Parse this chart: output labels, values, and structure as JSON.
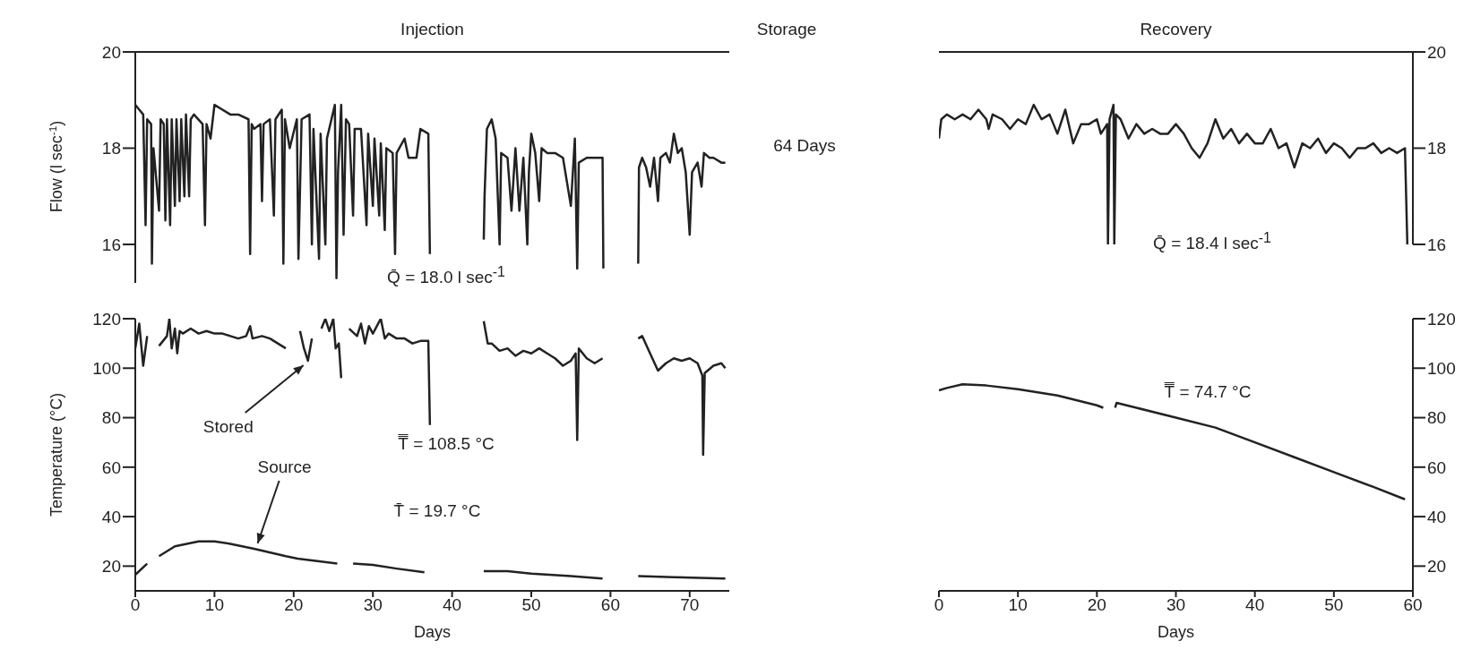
{
  "chart_data": [
    {
      "type": "line",
      "title": "Injection",
      "ylabel": "Flow (l sec$^{-1}$)",
      "annotations": [
        "Q̄ = 18.0 l sec$^{-1}$"
      ],
      "xlim": [
        0,
        75
      ],
      "ylim": [
        15.2,
        20
      ],
      "yticks": [
        16,
        18,
        20
      ],
      "tick_labels": "y",
      "series": [
        {
          "color": "#222222",
          "x": [
            0,
            0.5,
            1,
            1.3,
            1.5,
            2,
            2.1,
            2.3,
            3,
            3.2,
            3.6,
            3.8,
            4,
            4.4,
            4.6,
            5,
            5.2,
            5.6,
            5.8,
            6.2,
            6.4,
            6.8,
            7,
            7.4,
            8.5,
            8.8,
            9,
            9.5,
            10,
            11,
            12,
            13,
            14.3,
            14.5,
            14.7,
            15,
            15.8,
            16,
            16.2,
            17,
            17.5,
            17.7,
            18.5,
            18.7,
            18.9,
            19.5,
            20.4,
            20.6,
            21,
            22,
            22.3,
            22.5,
            23.2,
            23.4,
            24,
            24.2,
            25.2,
            25.4,
            25.6,
            26,
            26.3,
            26.6,
            27,
            27.5,
            27.7,
            28.5,
            29.2,
            29.4,
            30,
            30.2,
            30.8,
            31,
            31.5,
            31.7,
            32.5,
            32.8,
            33,
            34,
            34.5,
            35.5,
            36,
            37,
            37.2,
            40,
            44,
            44.1,
            44.4,
            45,
            45.5,
            46,
            46.2,
            47,
            47.5,
            48,
            48.5,
            49,
            49.5,
            49.7,
            50,
            50.5,
            51,
            51.3,
            52,
            53,
            54,
            54.5,
            55,
            55.5,
            55.8,
            56,
            57,
            58,
            59,
            59.1,
            61,
            63.5,
            63.6,
            64,
            64.5,
            65,
            65.5,
            66,
            66.3,
            67,
            67.5,
            68,
            68.5,
            69,
            69.5,
            70,
            70.3,
            71,
            71.5,
            71.8,
            72.5,
            73,
            74,
            74.5
          ],
          "values": [
            18.9,
            18.8,
            18.7,
            16.4,
            18.6,
            18.5,
            15.6,
            18.0,
            16.7,
            18.6,
            18.5,
            16.5,
            18.6,
            16.4,
            18.6,
            16.8,
            18.6,
            16.9,
            18.6,
            17.0,
            18.7,
            17.0,
            18.6,
            18.7,
            18.5,
            16.4,
            18.5,
            18.2,
            18.9,
            18.8,
            18.7,
            18.7,
            18.6,
            15.8,
            18.5,
            18.4,
            18.5,
            16.9,
            18.5,
            18.6,
            16.6,
            18.6,
            18.8,
            15.6,
            18.6,
            18.0,
            18.6,
            15.7,
            18.6,
            18.7,
            16.0,
            18.4,
            15.7,
            18.3,
            16.0,
            18.2,
            18.9,
            15.3,
            17.5,
            18.9,
            16.2,
            18.6,
            18.5,
            16.6,
            18.4,
            18.4,
            16.4,
            18.3,
            16.8,
            18.2,
            16.6,
            18.1,
            16.3,
            18.0,
            17.9,
            15.8,
            17.9,
            18.2,
            17.8,
            17.8,
            18.4,
            18.3,
            15.8,
            null,
            16.1,
            17.0,
            18.4,
            18.6,
            18.2,
            16.0,
            17.9,
            17.8,
            16.7,
            18.0,
            16.7,
            17.8,
            16.0,
            17.5,
            18.3,
            17.9,
            16.9,
            18.0,
            17.9,
            17.9,
            17.8,
            17.3,
            16.8,
            18.2,
            15.5,
            17.7,
            17.8,
            17.8,
            17.8,
            15.5,
            null,
            15.6,
            17.6,
            17.8,
            17.6,
            17.2,
            17.8,
            16.9,
            17.8,
            17.9,
            17.7,
            18.3,
            17.9,
            18.0,
            17.5,
            16.2,
            17.5,
            17.7,
            17.2,
            17.9,
            17.8,
            17.8,
            17.7,
            17.7
          ]
        }
      ]
    },
    {
      "type": "line",
      "xlabel": "Days",
      "ylabel": "Temperature (°C)",
      "annotations": [
        "T̿ = 108.5 °C",
        "T̄ = 19.7 °C"
      ],
      "xlim": [
        0,
        75
      ],
      "xticks": [
        0,
        10,
        20,
        30,
        40,
        50,
        60,
        70
      ],
      "ylim": [
        10,
        120
      ],
      "yticks": [
        20,
        40,
        60,
        80,
        100,
        120
      ],
      "series": [
        {
          "name": "Stored",
          "color": "#222222",
          "x": [
            0,
            0.5,
            1,
            1.5,
            2.5,
            3,
            3.5,
            4,
            4.3,
            4.6,
            5,
            5.3,
            5.6,
            6,
            7,
            8,
            9,
            10,
            11,
            12,
            13,
            14,
            14.5,
            14.8,
            16,
            17,
            18,
            19,
            20,
            20.8,
            21.3,
            21.8,
            22.3,
            23,
            23.5,
            24,
            24.5,
            25,
            25.3,
            25.7,
            26,
            26.5,
            27,
            28,
            28.5,
            29,
            29.5,
            30,
            31,
            31.5,
            32,
            33,
            34,
            35,
            36,
            37,
            37.2,
            40,
            44,
            44.5,
            45,
            46,
            47,
            48,
            49,
            50,
            51,
            52,
            53,
            54,
            55,
            55.6,
            55.8,
            56,
            57,
            58,
            59,
            61,
            63.5,
            64,
            65,
            66,
            67,
            68,
            69,
            70,
            71,
            71.6,
            71.7,
            71.9,
            73,
            74,
            74.5
          ],
          "values": [
            108,
            118,
            101,
            113,
            null,
            109,
            111,
            113,
            120,
            108,
            116,
            106,
            115,
            114,
            116,
            114,
            115,
            114,
            114,
            113,
            112,
            113,
            117,
            112,
            113,
            112,
            110,
            108,
            null,
            115,
            108,
            103,
            112,
            null,
            116,
            120,
            115,
            120,
            108,
            110,
            96,
            null,
            116,
            113,
            118,
            110,
            117,
            114,
            120,
            112,
            114,
            112,
            112,
            110,
            111,
            111,
            77,
            null,
            119,
            110,
            110,
            107,
            108,
            105,
            107,
            106,
            108,
            106,
            104,
            101,
            103,
            106,
            71,
            108,
            104,
            102,
            104,
            null,
            112,
            113,
            106,
            99,
            102,
            104,
            103,
            104,
            102,
            97,
            65,
            98,
            101,
            102,
            100
          ]
        },
        {
          "name": "Source",
          "color": "#222222",
          "x": [
            0,
            1.5,
            2.2,
            3,
            5,
            8,
            10,
            12,
            15,
            19,
            20.5,
            23,
            25.5,
            26.5,
            27.5,
            30,
            33,
            36.5,
            40,
            44,
            47,
            50,
            55,
            59,
            61,
            63.5,
            68,
            74.5
          ],
          "values": [
            16.5,
            21,
            null,
            24,
            28,
            30,
            30,
            29,
            27,
            24,
            23,
            22,
            21,
            null,
            21,
            20.5,
            19,
            17.5,
            null,
            18,
            18,
            17,
            16,
            15,
            null,
            16,
            15.5,
            15
          ]
        }
      ]
    },
    {
      "type": "other",
      "title": "Storage",
      "annotations": [
        "64 Days"
      ]
    },
    {
      "type": "line",
      "title": "Recovery",
      "annotations": [
        "Q̄ = 18.4 l sec$^{-1}$"
      ],
      "xlim": [
        0,
        60
      ],
      "ylim": [
        16,
        20
      ],
      "yticks": [
        16,
        18,
        20
      ],
      "tick_labels": "y",
      "series": [
        {
          "color": "#222222",
          "x": [
            0,
            0.3,
            1,
            2,
            3,
            4,
            5,
            6,
            6.3,
            6.8,
            8,
            9,
            10,
            11,
            12,
            13,
            14,
            15,
            16,
            17,
            18,
            19,
            20,
            20.5,
            21.3,
            21.4,
            21.6,
            22.1,
            22.2,
            22.4,
            23,
            24,
            25,
            26,
            27,
            28,
            29,
            30,
            31,
            32,
            33,
            34,
            35,
            36,
            37,
            38,
            39,
            40,
            41,
            42,
            43,
            44,
            45,
            46,
            47,
            48,
            49,
            50,
            51,
            52,
            53,
            54,
            55,
            56,
            57,
            58,
            59,
            59.3
          ],
          "values": [
            18.2,
            18.6,
            18.7,
            18.6,
            18.7,
            18.6,
            18.8,
            18.6,
            18.4,
            18.7,
            18.6,
            18.4,
            18.6,
            18.5,
            18.9,
            18.6,
            18.7,
            18.3,
            18.8,
            18.1,
            18.5,
            18.5,
            18.6,
            18.3,
            18.5,
            16.0,
            18.6,
            18.9,
            16.0,
            18.7,
            18.6,
            18.2,
            18.5,
            18.3,
            18.4,
            18.3,
            18.3,
            18.5,
            18.3,
            18.0,
            17.8,
            18.1,
            18.6,
            18.2,
            18.4,
            18.1,
            18.3,
            18.1,
            18.1,
            18.4,
            18.0,
            18.1,
            17.6,
            18.1,
            18.0,
            18.2,
            17.9,
            18.1,
            18.0,
            17.8,
            18.0,
            18.0,
            18.1,
            17.9,
            18.0,
            17.9,
            18.0,
            16.0
          ]
        }
      ]
    },
    {
      "type": "line",
      "xlabel": "Days",
      "annotations": [
        "T̿ = 74.7 °C"
      ],
      "xlim": [
        0,
        60
      ],
      "xticks": [
        0,
        10,
        20,
        30,
        40,
        50,
        60
      ],
      "ylim": [
        10,
        120
      ],
      "yticks": [
        20,
        40,
        60,
        80,
        100,
        120
      ],
      "series": [
        {
          "color": "#222222",
          "x": [
            0,
            1,
            3,
            6,
            10,
            15,
            20,
            20.8,
            21.5,
            22.3,
            22.5,
            25,
            30,
            35,
            40,
            45,
            50,
            55,
            59
          ],
          "values": [
            91,
            92,
            93.5,
            93,
            91.5,
            89,
            85,
            84,
            null,
            84,
            86,
            84,
            80,
            76,
            70,
            64,
            58,
            52,
            47
          ]
        }
      ]
    }
  ]
}
